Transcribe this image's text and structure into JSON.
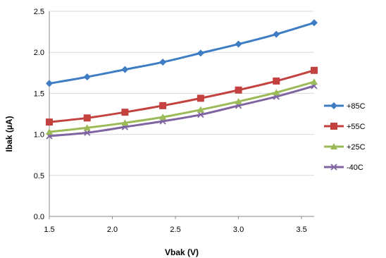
{
  "chart_data": {
    "type": "line",
    "title": "",
    "xlabel": "Vbak (V)",
    "ylabel": "Ibak (µA)",
    "xlim": [
      1.5,
      3.6
    ],
    "ylim": [
      0.0,
      2.5
    ],
    "xticks": [
      "1.5",
      "2.0",
      "2.5",
      "3.0",
      "3.5"
    ],
    "yticks": [
      "0.0",
      "0.5",
      "1.0",
      "1.5",
      "2.0",
      "2.5"
    ],
    "grid": "horizontal",
    "legend_position": "right",
    "x": [
      1.5,
      1.8,
      2.1,
      2.4,
      2.7,
      3.0,
      3.3,
      3.6
    ],
    "series": [
      {
        "name": "+85C",
        "color": "#3e7dc4",
        "marker": "diamond",
        "values": [
          1.62,
          1.7,
          1.79,
          1.88,
          1.99,
          2.1,
          2.22,
          2.36
        ]
      },
      {
        "name": "+55C",
        "color": "#c3423f",
        "marker": "square",
        "values": [
          1.15,
          1.2,
          1.27,
          1.35,
          1.44,
          1.54,
          1.65,
          1.78
        ]
      },
      {
        "name": "+25C",
        "color": "#9bbb59",
        "marker": "triangle",
        "values": [
          1.03,
          1.08,
          1.14,
          1.21,
          1.3,
          1.4,
          1.51,
          1.64
        ]
      },
      {
        "name": "-40C",
        "color": "#8064a2",
        "marker": "x",
        "values": [
          0.98,
          1.02,
          1.09,
          1.16,
          1.24,
          1.35,
          1.46,
          1.59
        ]
      }
    ]
  }
}
